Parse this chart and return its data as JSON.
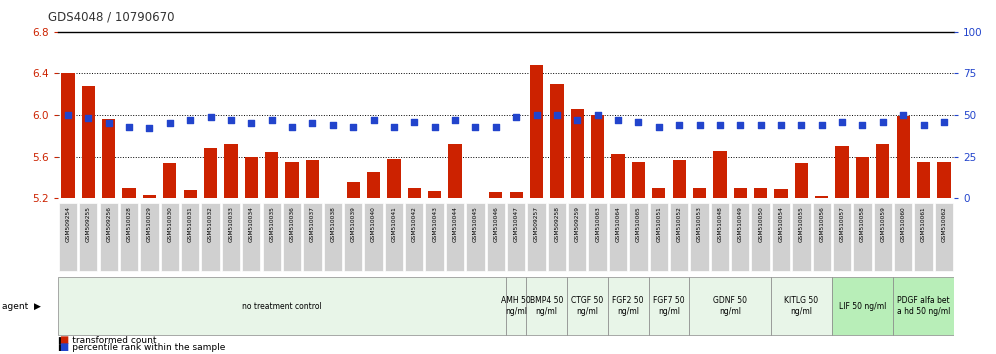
{
  "title": "GDS4048 / 10790670",
  "ylim_left": [
    5.2,
    6.8
  ],
  "ylim_right": [
    0,
    100
  ],
  "yticks_left": [
    5.2,
    5.6,
    6.0,
    6.4,
    6.8
  ],
  "yticks_right": [
    0,
    25,
    50,
    75,
    100
  ],
  "hlines": [
    6.4,
    6.0,
    5.6
  ],
  "samples": [
    "GSM509254",
    "GSM509255",
    "GSM509256",
    "GSM510028",
    "GSM510029",
    "GSM510030",
    "GSM510031",
    "GSM510032",
    "GSM510033",
    "GSM510034",
    "GSM510035",
    "GSM510036",
    "GSM510037",
    "GSM510038",
    "GSM510039",
    "GSM510040",
    "GSM510041",
    "GSM510042",
    "GSM510043",
    "GSM510044",
    "GSM510045",
    "GSM510046",
    "GSM510047",
    "GSM509257",
    "GSM509258",
    "GSM509259",
    "GSM510063",
    "GSM510064",
    "GSM510065",
    "GSM510051",
    "GSM510052",
    "GSM510053",
    "GSM510048",
    "GSM510049",
    "GSM510050",
    "GSM510054",
    "GSM510055",
    "GSM510056",
    "GSM510057",
    "GSM510058",
    "GSM510059",
    "GSM510060",
    "GSM510061",
    "GSM510062"
  ],
  "bar_values": [
    6.4,
    6.28,
    5.96,
    5.3,
    5.23,
    5.54,
    5.28,
    5.68,
    5.72,
    5.6,
    5.64,
    5.55,
    5.57,
    5.2,
    5.36,
    5.45,
    5.58,
    5.3,
    5.27,
    5.72,
    5.2,
    5.26,
    5.26,
    6.48,
    6.3,
    6.06,
    6.0,
    5.63,
    5.55,
    5.3,
    5.57,
    5.3,
    5.65,
    5.3,
    5.3,
    5.29,
    5.54,
    5.22,
    5.7,
    5.6,
    5.72,
    5.99,
    5.55,
    5.55
  ],
  "percentile_values": [
    50,
    48,
    45,
    43,
    42,
    45,
    47,
    49,
    47,
    45,
    47,
    43,
    45,
    44,
    43,
    47,
    43,
    46,
    43,
    47,
    43,
    43,
    49,
    50,
    50,
    47,
    50,
    47,
    46,
    43,
    44,
    44,
    44,
    44,
    44,
    44,
    44,
    44,
    46,
    44,
    46,
    50,
    44,
    46
  ],
  "agent_groups": [
    {
      "label": "no treatment control",
      "start": 0,
      "end": 22,
      "color": "#e8f5e8"
    },
    {
      "label": "AMH 50\nng/ml",
      "start": 22,
      "end": 23,
      "color": "#e8f5e8"
    },
    {
      "label": "BMP4 50\nng/ml",
      "start": 23,
      "end": 25,
      "color": "#e8f5e8"
    },
    {
      "label": "CTGF 50\nng/ml",
      "start": 25,
      "end": 27,
      "color": "#e8f5e8"
    },
    {
      "label": "FGF2 50\nng/ml",
      "start": 27,
      "end": 29,
      "color": "#e8f5e8"
    },
    {
      "label": "FGF7 50\nng/ml",
      "start": 29,
      "end": 31,
      "color": "#e8f5e8"
    },
    {
      "label": "GDNF 50\nng/ml",
      "start": 31,
      "end": 35,
      "color": "#e8f5e8"
    },
    {
      "label": "KITLG 50\nng/ml",
      "start": 35,
      "end": 38,
      "color": "#e8f5e8"
    },
    {
      "label": "LIF 50 ng/ml",
      "start": 38,
      "end": 41,
      "color": "#b8eeb8"
    },
    {
      "label": "PDGF alfa bet\na hd 50 ng/ml",
      "start": 41,
      "end": 44,
      "color": "#b8eeb8"
    }
  ],
  "bar_color": "#cc2200",
  "dot_color": "#2244cc",
  "title_color": "#333333",
  "axis_color_left": "#cc2200",
  "axis_color_right": "#2244cc",
  "label_box_color": "#d0d0d0",
  "plot_bg": "#ffffff"
}
